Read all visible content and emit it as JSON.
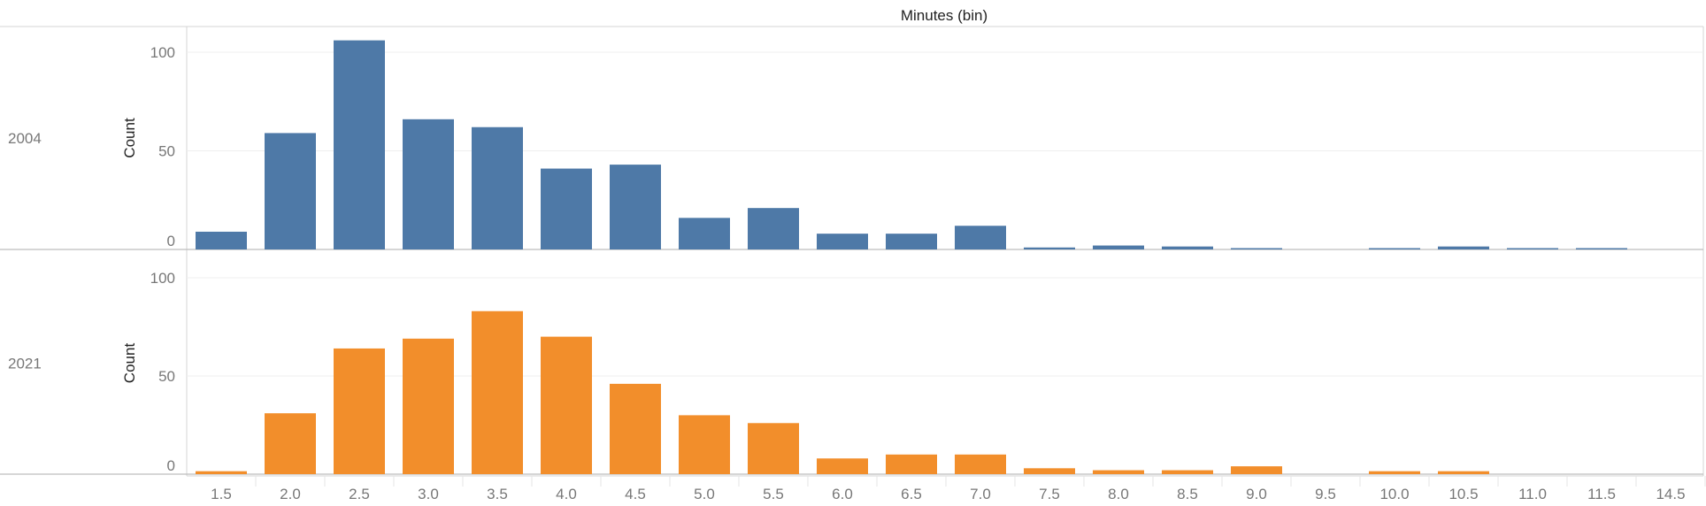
{
  "chart_data": {
    "type": "bar",
    "title": "Minutes (bin)",
    "ylabel": "Count",
    "ylim": [
      0,
      100
    ],
    "yticks": [
      0,
      50,
      100
    ],
    "categories": [
      "1.5",
      "2.0",
      "2.5",
      "3.0",
      "3.5",
      "4.0",
      "4.5",
      "5.0",
      "5.5",
      "6.0",
      "6.5",
      "7.0",
      "7.5",
      "8.0",
      "8.5",
      "9.0",
      "9.5",
      "10.0",
      "10.5",
      "11.0",
      "11.5",
      "14.5"
    ],
    "series": [
      {
        "name": "2004",
        "color": "#4e79a7",
        "values": [
          9,
          59,
          106,
          66,
          62,
          41,
          43,
          16,
          21,
          8,
          8,
          12,
          1,
          2,
          1.5,
          0.5,
          0,
          0.5,
          1.5,
          0.5,
          0.5,
          0
        ]
      },
      {
        "name": "2021",
        "color": "#f28e2b",
        "values": [
          1.5,
          31,
          64,
          69,
          83,
          70,
          46,
          30,
          26,
          8,
          10,
          10,
          3,
          2,
          2,
          4,
          0,
          1.5,
          1.5,
          0,
          0,
          0
        ]
      }
    ],
    "grid": true
  }
}
